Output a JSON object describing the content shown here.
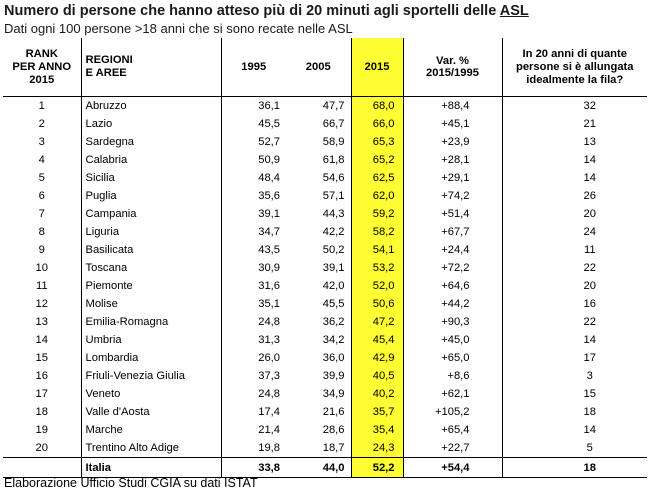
{
  "title": "Numero di persone che hanno atteso più di 20 minuti agli sportelli delle ",
  "title_underlined": "ASL",
  "subtitle": "Dati ogni 100 persone >18 anni che si sono recate nelle ASL",
  "columns": {
    "rank": [
      "RANK",
      "PER ANNO",
      "2015"
    ],
    "region": [
      "REGIONI",
      "E AREE"
    ],
    "y1995": "1995",
    "y2005": "2005",
    "y2015": "2015",
    "var": [
      "Var. %",
      "2015/1995"
    ],
    "fila": "In 20 anni di quante persone si è allungata idealmente la fila?"
  },
  "rows": [
    {
      "rank": "1",
      "region": "Abruzzo",
      "y1995": "36,1",
      "y2005": "47,7",
      "y2015": "68,0",
      "var": "+88,4",
      "fila": "32"
    },
    {
      "rank": "2",
      "region": "Lazio",
      "y1995": "45,5",
      "y2005": "66,7",
      "y2015": "66,0",
      "var": "+45,1",
      "fila": "21"
    },
    {
      "rank": "3",
      "region": "Sardegna",
      "y1995": "52,7",
      "y2005": "58,9",
      "y2015": "65,3",
      "var": "+23,9",
      "fila": "13"
    },
    {
      "rank": "4",
      "region": "Calabria",
      "y1995": "50,9",
      "y2005": "61,8",
      "y2015": "65,2",
      "var": "+28,1",
      "fila": "14"
    },
    {
      "rank": "5",
      "region": "Sicilia",
      "y1995": "48,4",
      "y2005": "54,6",
      "y2015": "62,5",
      "var": "+29,1",
      "fila": "14"
    },
    {
      "rank": "6",
      "region": "Puglia",
      "y1995": "35,6",
      "y2005": "57,1",
      "y2015": "62,0",
      "var": "+74,2",
      "fila": "26"
    },
    {
      "rank": "7",
      "region": "Campania",
      "y1995": "39,1",
      "y2005": "44,3",
      "y2015": "59,2",
      "var": "+51,4",
      "fila": "20"
    },
    {
      "rank": "8",
      "region": "Liguria",
      "y1995": "34,7",
      "y2005": "42,2",
      "y2015": "58,2",
      "var": "+67,7",
      "fila": "24"
    },
    {
      "rank": "9",
      "region": "Basilicata",
      "y1995": "43,5",
      "y2005": "50,2",
      "y2015": "54,1",
      "var": "+24,4",
      "fila": "11"
    },
    {
      "rank": "10",
      "region": "Toscana",
      "y1995": "30,9",
      "y2005": "39,1",
      "y2015": "53,2",
      "var": "+72,2",
      "fila": "22"
    },
    {
      "rank": "11",
      "region": "Piemonte",
      "y1995": "31,6",
      "y2005": "42,0",
      "y2015": "52,0",
      "var": "+64,6",
      "fila": "20"
    },
    {
      "rank": "12",
      "region": "Molise",
      "y1995": "35,1",
      "y2005": "45,5",
      "y2015": "50,6",
      "var": "+44,2",
      "fila": "16"
    },
    {
      "rank": "13",
      "region": "Emilia-Romagna",
      "y1995": "24,8",
      "y2005": "36,2",
      "y2015": "47,2",
      "var": "+90,3",
      "fila": "22"
    },
    {
      "rank": "14",
      "region": "Umbria",
      "y1995": "31,3",
      "y2005": "34,2",
      "y2015": "45,4",
      "var": "+45,0",
      "fila": "14"
    },
    {
      "rank": "15",
      "region": "Lombardia",
      "y1995": "26,0",
      "y2005": "36,0",
      "y2015": "42,9",
      "var": "+65,0",
      "fila": "17"
    },
    {
      "rank": "16",
      "region": "Friuli-Venezia Giulia",
      "y1995": "37,3",
      "y2005": "39,9",
      "y2015": "40,5",
      "var": "+8,6",
      "fila": "3"
    },
    {
      "rank": "17",
      "region": "Veneto",
      "y1995": "24,8",
      "y2005": "34,9",
      "y2015": "40,2",
      "var": "+62,1",
      "fila": "15"
    },
    {
      "rank": "18",
      "region": "Valle d'Aosta",
      "y1995": "17,4",
      "y2005": "21,6",
      "y2015": "35,7",
      "var": "+105,2",
      "fila": "18"
    },
    {
      "rank": "19",
      "region": "Marche",
      "y1995": "21,4",
      "y2005": "28,6",
      "y2015": "35,4",
      "var": "+65,4",
      "fila": "14"
    },
    {
      "rank": "20",
      "region": "Trentino Alto Adige",
      "y1995": "19,8",
      "y2005": "18,7",
      "y2015": "24,3",
      "var": "+22,7",
      "fila": "5"
    }
  ],
  "total": {
    "rank": "",
    "region": "Italia",
    "y1995": "33,8",
    "y2005": "44,0",
    "y2015": "52,2",
    "var": "+54,4",
    "fila": "18"
  },
  "footer": "Elaborazione Ufficio Studi CGIA su dati ISTAT",
  "colors": {
    "highlight": "#ffff33"
  }
}
